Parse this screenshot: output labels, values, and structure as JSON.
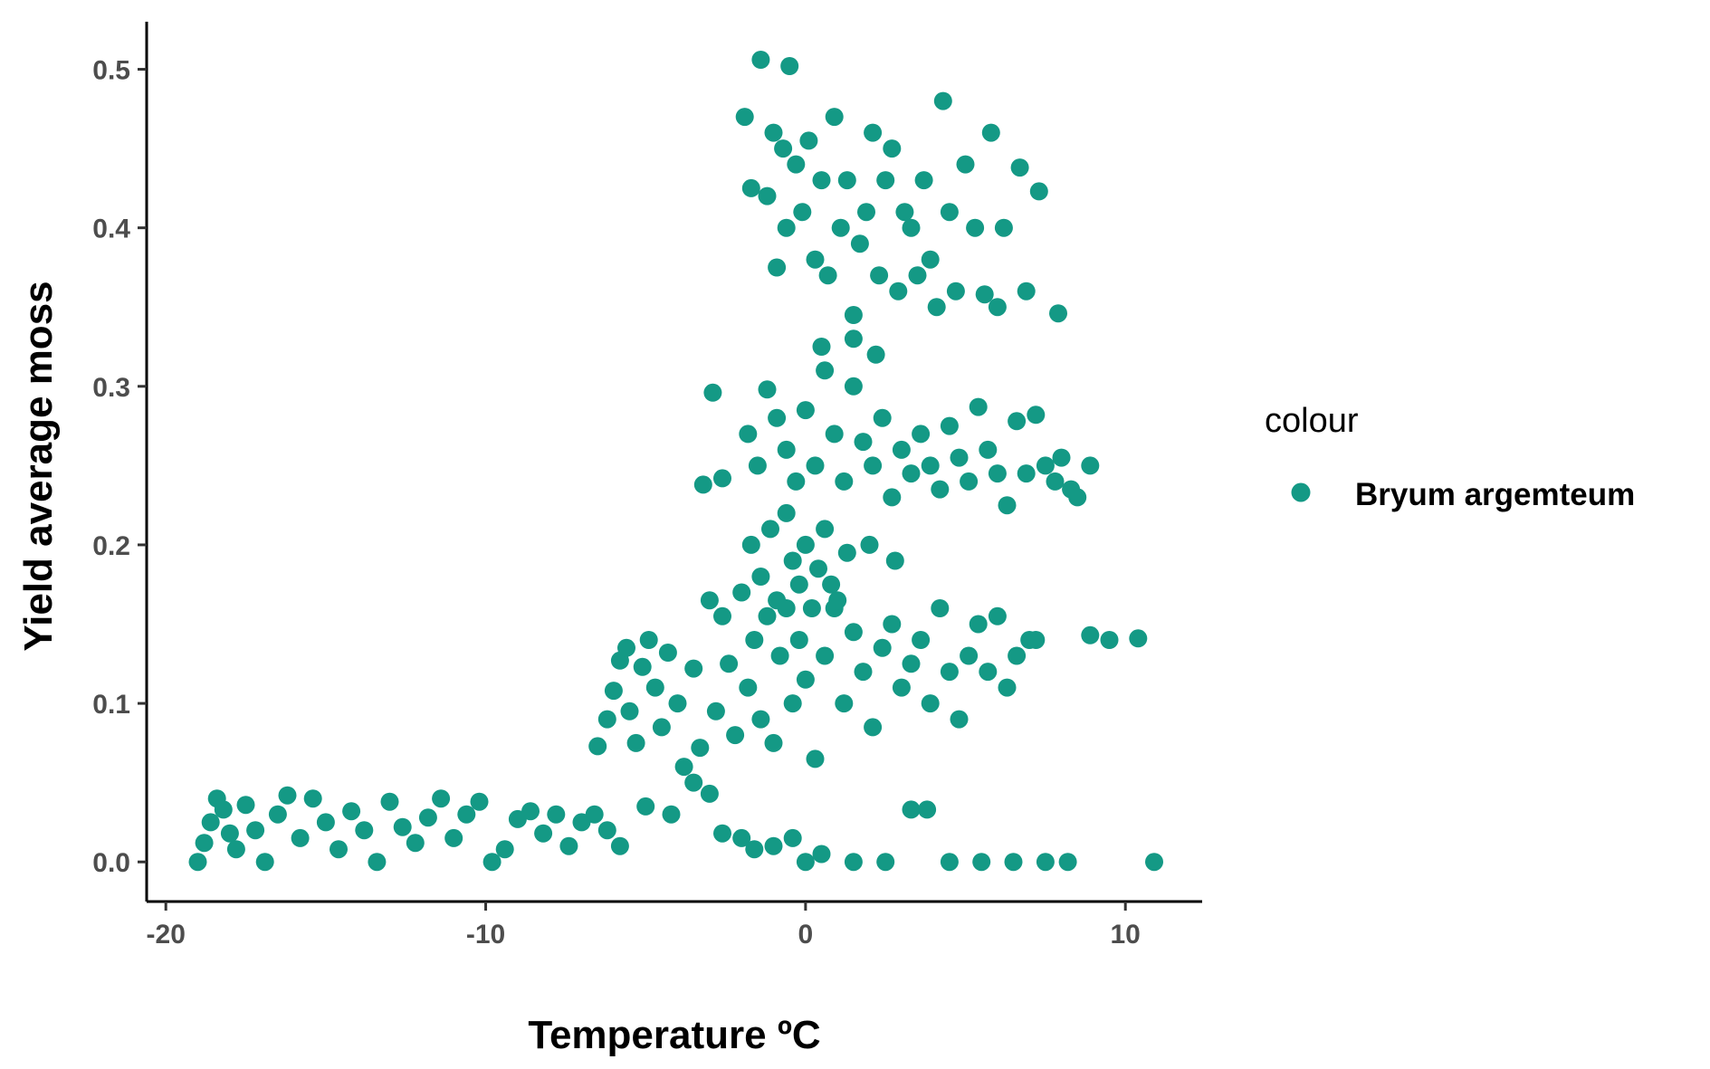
{
  "chart_data": {
    "type": "scatter",
    "xlabel": "Temperature ºC",
    "ylabel": "Yield average moss",
    "xlim": [
      -20.6,
      12.4
    ],
    "ylim": [
      -0.025,
      0.53
    ],
    "x_ticks": [
      -20,
      -10,
      0,
      10
    ],
    "x_tick_labels": [
      "-20",
      "-10",
      "0",
      "10"
    ],
    "y_ticks": [
      0.0,
      0.1,
      0.2,
      0.3,
      0.4,
      0.5
    ],
    "y_tick_labels": [
      "0.0",
      "0.1",
      "0.2",
      "0.3",
      "0.4",
      "0.5"
    ],
    "grid": false,
    "legend": {
      "title": "colour",
      "position": "right",
      "entries": [
        {
          "label": "Bryum argemteum",
          "color": "#149985"
        }
      ]
    },
    "series": [
      {
        "name": "Bryum argemteum",
        "color": "#149985",
        "points": [
          [
            -19.0,
            0.0
          ],
          [
            -18.8,
            0.012
          ],
          [
            -18.6,
            0.025
          ],
          [
            -18.4,
            0.04
          ],
          [
            -18.2,
            0.033
          ],
          [
            -18.0,
            0.018
          ],
          [
            -17.8,
            0.008
          ],
          [
            -17.5,
            0.036
          ],
          [
            -17.2,
            0.02
          ],
          [
            -16.9,
            0.0
          ],
          [
            -16.5,
            0.03
          ],
          [
            -16.2,
            0.042
          ],
          [
            -15.8,
            0.015
          ],
          [
            -15.4,
            0.04
          ],
          [
            -15.0,
            0.025
          ],
          [
            -14.6,
            0.008
          ],
          [
            -14.2,
            0.032
          ],
          [
            -13.8,
            0.02
          ],
          [
            -13.4,
            0.0
          ],
          [
            -13.0,
            0.038
          ],
          [
            -12.6,
            0.022
          ],
          [
            -12.2,
            0.012
          ],
          [
            -11.8,
            0.028
          ],
          [
            -11.4,
            0.04
          ],
          [
            -11.0,
            0.015
          ],
          [
            -10.6,
            0.03
          ],
          [
            -10.2,
            0.038
          ],
          [
            -9.8,
            0.0
          ],
          [
            -9.4,
            0.008
          ],
          [
            -9.0,
            0.027
          ],
          [
            -8.6,
            0.032
          ],
          [
            -8.2,
            0.018
          ],
          [
            -7.8,
            0.03
          ],
          [
            -7.4,
            0.01
          ],
          [
            -7.0,
            0.025
          ],
          [
            -6.6,
            0.03
          ],
          [
            -6.2,
            0.02
          ],
          [
            -5.8,
            0.01
          ],
          [
            -5.0,
            0.035
          ],
          [
            -4.2,
            0.03
          ],
          [
            -3.5,
            0.05
          ],
          [
            -3.0,
            0.043
          ],
          [
            -2.6,
            0.018
          ],
          [
            -2.0,
            0.015
          ],
          [
            -1.6,
            0.008
          ],
          [
            -1.0,
            0.01
          ],
          [
            -0.4,
            0.015
          ],
          [
            0.0,
            0.0
          ],
          [
            0.5,
            0.005
          ],
          [
            1.5,
            0.0
          ],
          [
            2.5,
            0.0
          ],
          [
            3.3,
            0.033
          ],
          [
            3.8,
            0.033
          ],
          [
            4.5,
            0.0
          ],
          [
            5.5,
            0.0
          ],
          [
            6.5,
            0.0
          ],
          [
            7.5,
            0.0
          ],
          [
            8.2,
            0.0
          ],
          [
            10.9,
            0.0
          ],
          [
            -6.5,
            0.073
          ],
          [
            -6.2,
            0.09
          ],
          [
            -6.0,
            0.108
          ],
          [
            -5.8,
            0.127
          ],
          [
            -5.6,
            0.135
          ],
          [
            -5.5,
            0.095
          ],
          [
            -5.3,
            0.075
          ],
          [
            -5.1,
            0.123
          ],
          [
            -4.9,
            0.14
          ],
          [
            -4.7,
            0.11
          ],
          [
            -4.5,
            0.085
          ],
          [
            -4.3,
            0.132
          ],
          [
            -4.0,
            0.1
          ],
          [
            -3.8,
            0.06
          ],
          [
            -3.5,
            0.122
          ],
          [
            -3.3,
            0.072
          ],
          [
            -3.0,
            0.165
          ],
          [
            -2.8,
            0.095
          ],
          [
            -2.6,
            0.155
          ],
          [
            -2.4,
            0.125
          ],
          [
            -2.2,
            0.08
          ],
          [
            -2.0,
            0.17
          ],
          [
            -1.8,
            0.11
          ],
          [
            -1.6,
            0.14
          ],
          [
            -1.4,
            0.09
          ],
          [
            -1.2,
            0.155
          ],
          [
            -1.0,
            0.075
          ],
          [
            -0.8,
            0.13
          ],
          [
            -0.6,
            0.16
          ],
          [
            -0.4,
            0.1
          ],
          [
            -0.2,
            0.14
          ],
          [
            0.0,
            0.115
          ],
          [
            0.3,
            0.065
          ],
          [
            0.6,
            0.13
          ],
          [
            0.9,
            0.16
          ],
          [
            1.2,
            0.1
          ],
          [
            1.5,
            0.145
          ],
          [
            1.8,
            0.12
          ],
          [
            2.1,
            0.085
          ],
          [
            2.4,
            0.135
          ],
          [
            2.7,
            0.15
          ],
          [
            3.0,
            0.11
          ],
          [
            3.3,
            0.125
          ],
          [
            3.6,
            0.14
          ],
          [
            3.9,
            0.1
          ],
          [
            4.2,
            0.16
          ],
          [
            4.5,
            0.12
          ],
          [
            4.8,
            0.09
          ],
          [
            5.1,
            0.13
          ],
          [
            5.4,
            0.15
          ],
          [
            5.7,
            0.12
          ],
          [
            6.0,
            0.155
          ],
          [
            6.3,
            0.11
          ],
          [
            6.6,
            0.13
          ],
          [
            7.0,
            0.14
          ],
          [
            7.2,
            0.14
          ],
          [
            8.9,
            0.143
          ],
          [
            9.5,
            0.14
          ],
          [
            10.4,
            0.141
          ],
          [
            -1.7,
            0.2
          ],
          [
            -1.4,
            0.18
          ],
          [
            -1.1,
            0.21
          ],
          [
            -0.9,
            0.165
          ],
          [
            -0.6,
            0.22
          ],
          [
            -0.4,
            0.19
          ],
          [
            -0.2,
            0.175
          ],
          [
            0.0,
            0.2
          ],
          [
            0.2,
            0.16
          ],
          [
            0.4,
            0.185
          ],
          [
            0.6,
            0.21
          ],
          [
            0.8,
            0.175
          ],
          [
            1.0,
            0.165
          ],
          [
            1.3,
            0.195
          ],
          [
            2.0,
            0.2
          ],
          [
            2.8,
            0.19
          ],
          [
            -3.2,
            0.238
          ],
          [
            -2.9,
            0.296
          ],
          [
            -2.6,
            0.242
          ],
          [
            -1.8,
            0.27
          ],
          [
            -1.5,
            0.25
          ],
          [
            -1.2,
            0.298
          ],
          [
            -0.9,
            0.28
          ],
          [
            -0.6,
            0.26
          ],
          [
            -0.3,
            0.24
          ],
          [
            0.0,
            0.285
          ],
          [
            0.3,
            0.25
          ],
          [
            0.6,
            0.31
          ],
          [
            0.9,
            0.27
          ],
          [
            1.2,
            0.24
          ],
          [
            1.5,
            0.3
          ],
          [
            1.8,
            0.265
          ],
          [
            2.1,
            0.25
          ],
          [
            2.4,
            0.28
          ],
          [
            2.7,
            0.23
          ],
          [
            3.0,
            0.26
          ],
          [
            3.3,
            0.245
          ],
          [
            3.6,
            0.27
          ],
          [
            3.9,
            0.25
          ],
          [
            4.2,
            0.235
          ],
          [
            4.5,
            0.275
          ],
          [
            4.8,
            0.255
          ],
          [
            5.1,
            0.24
          ],
          [
            5.4,
            0.287
          ],
          [
            5.7,
            0.26
          ],
          [
            6.0,
            0.245
          ],
          [
            6.3,
            0.225
          ],
          [
            6.6,
            0.278
          ],
          [
            6.9,
            0.245
          ],
          [
            7.2,
            0.282
          ],
          [
            7.5,
            0.25
          ],
          [
            7.8,
            0.24
          ],
          [
            8.0,
            0.255
          ],
          [
            8.3,
            0.235
          ],
          [
            8.5,
            0.23
          ],
          [
            8.9,
            0.25
          ],
          [
            0.5,
            0.325
          ],
          [
            1.5,
            0.33
          ],
          [
            2.2,
            0.32
          ],
          [
            -1.9,
            0.47
          ],
          [
            -1.7,
            0.425
          ],
          [
            -1.4,
            0.506
          ],
          [
            -1.2,
            0.42
          ],
          [
            -1.0,
            0.46
          ],
          [
            -0.9,
            0.375
          ],
          [
            -0.7,
            0.45
          ],
          [
            -0.6,
            0.4
          ],
          [
            -0.5,
            0.502
          ],
          [
            -0.3,
            0.44
          ],
          [
            -0.1,
            0.41
          ],
          [
            0.1,
            0.455
          ],
          [
            0.3,
            0.38
          ],
          [
            0.5,
            0.43
          ],
          [
            0.7,
            0.37
          ],
          [
            0.9,
            0.47
          ],
          [
            1.1,
            0.4
          ],
          [
            1.3,
            0.43
          ],
          [
            1.5,
            0.345
          ],
          [
            1.7,
            0.39
          ],
          [
            1.9,
            0.41
          ],
          [
            2.1,
            0.46
          ],
          [
            2.3,
            0.37
          ],
          [
            2.5,
            0.43
          ],
          [
            2.7,
            0.45
          ],
          [
            2.9,
            0.36
          ],
          [
            3.1,
            0.41
          ],
          [
            3.3,
            0.4
          ],
          [
            3.5,
            0.37
          ],
          [
            3.7,
            0.43
          ],
          [
            3.9,
            0.38
          ],
          [
            4.1,
            0.35
          ],
          [
            4.3,
            0.48
          ],
          [
            4.5,
            0.41
          ],
          [
            4.7,
            0.36
          ],
          [
            5.0,
            0.44
          ],
          [
            5.3,
            0.4
          ],
          [
            5.6,
            0.358
          ],
          [
            5.8,
            0.46
          ],
          [
            6.0,
            0.35
          ],
          [
            6.2,
            0.4
          ],
          [
            6.7,
            0.438
          ],
          [
            6.9,
            0.36
          ],
          [
            7.3,
            0.423
          ],
          [
            7.9,
            0.346
          ]
        ]
      }
    ]
  }
}
